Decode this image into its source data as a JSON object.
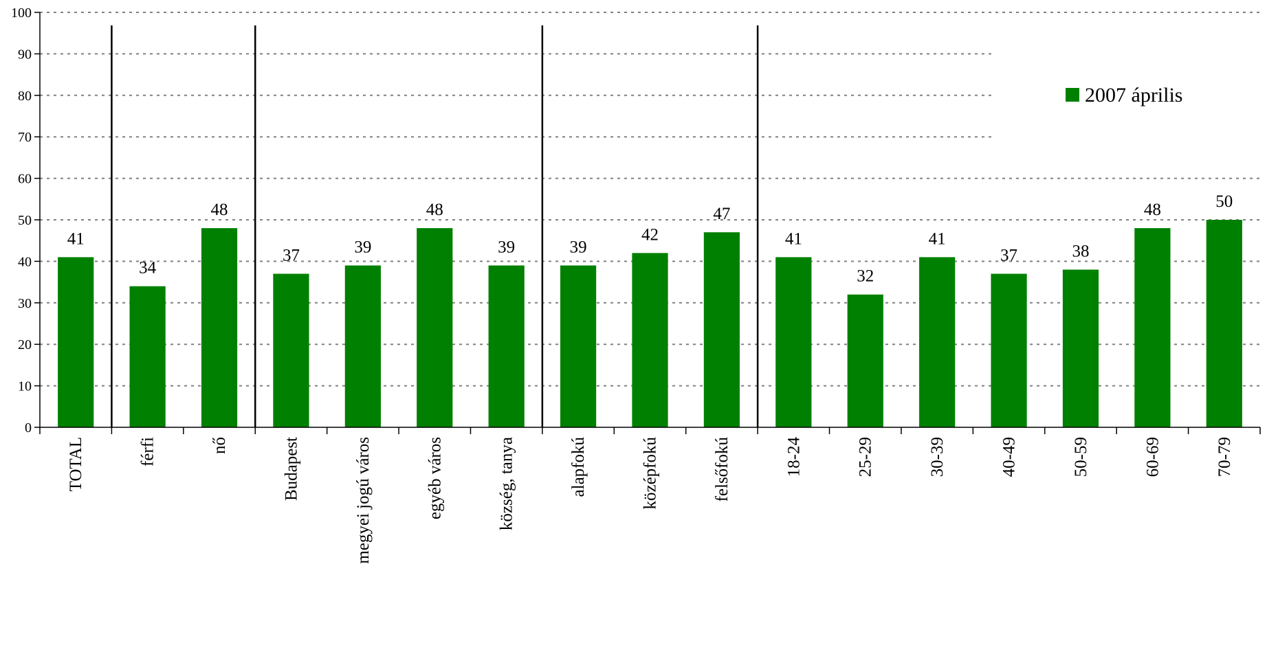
{
  "chart_data": {
    "type": "bar",
    "title": "",
    "xlabel": "",
    "ylabel": "",
    "ylim": [
      0,
      100
    ],
    "yticks": [
      0,
      10,
      20,
      30,
      40,
      50,
      60,
      70,
      80,
      90,
      100
    ],
    "grid": "horizontal-dotted",
    "legend_position": "top-right",
    "categories": [
      "TOTAL",
      "férfi",
      "nő",
      "Budapest",
      "megyei jogú város",
      "egyéb város",
      "község, tanya",
      "alapfokú",
      "középfokú",
      "felsőfokú",
      "18-24",
      "25-29",
      "30-39",
      "40-49",
      "50-59",
      "60-69",
      "70-79"
    ],
    "group_separators_after_index": [
      0,
      2,
      6,
      9
    ],
    "series": [
      {
        "name": "2007 április",
        "color": "#008000",
        "values": [
          41,
          34,
          48,
          37,
          39,
          48,
          39,
          39,
          42,
          47,
          41,
          32,
          41,
          37,
          38,
          48,
          50
        ],
        "data_labels": [
          "41",
          "34",
          "48",
          "37",
          "39",
          "48",
          "39",
          "39",
          "42",
          "47",
          "41",
          "32",
          "41",
          "37",
          "38",
          "48",
          "50"
        ]
      }
    ]
  }
}
